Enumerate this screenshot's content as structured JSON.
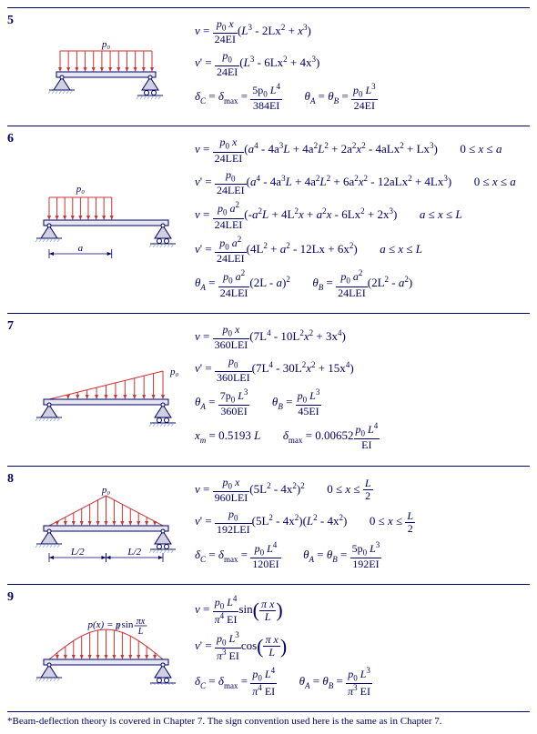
{
  "colors": {
    "ink": "#000066",
    "load": "#cc3333",
    "beam_fill": "#e6e6f0",
    "support_fill": "#d0d0e0",
    "ground": "#99aacc"
  },
  "footnote": "*Beam-deflection theory is covered in Chapter 7. The sign convention used here is the same as in Chapter 7.",
  "rows": [
    {
      "num": "5",
      "diagram_type": "uniform",
      "load_label": "p₀",
      "formulas": [
        "v = \\frac{p_0 x}{24EI}(L^3 - 2Lx^2 + x^3)",
        "v' = \\frac{p_0}{24EI}(L^3 - 6Lx^2 + 4x^3)",
        "\\delta_C = \\delta_{max} = \\frac{5p_0 L^4}{384EI} \\quad \\theta_A = \\theta_B = \\frac{p_0 L^3}{24EI}"
      ]
    },
    {
      "num": "6",
      "diagram_type": "partial_uniform",
      "load_label": "p₀",
      "dim_label": "a",
      "formulas": [
        "v = \\frac{p_0 x}{24LEI}(a^4 - 4a^3L + 4a^2L^2 + 2a^2x^2 - 4aLx^2 + Lx^3) \\quad 0 \\le x \\le a",
        "v' = \\frac{p_0}{24LEI}(a^4 - 4a^3L + 4a^2L^2 + 6a^2x^2 - 12aLx^2 + 4Lx^3) \\quad 0 \\le x \\le a",
        "v = \\frac{p_0 a^2}{24LEI}(-a^2L + 4L^2x + a^2x - 6Lx^2 + 2x^3) \\quad a \\le x \\le L",
        "v' = \\frac{p_0 a^2}{24LEI}(4L^2 + a^2 - 12Lx + 6x^2) \\quad a \\le x \\le L",
        "\\theta_A = \\frac{p_0 a^2}{24LEI}(2L - a)^2 \\quad \\theta_B = \\frac{p_0 a^2}{24LEI}(2L^2 - a^2)"
      ]
    },
    {
      "num": "7",
      "diagram_type": "triangular_rising",
      "load_label": "p₀",
      "formulas": [
        "v = \\frac{p_0 x}{360LEI}(7L^4 - 10L^2x^2 + 3x^4)",
        "v' = \\frac{p_0}{360LEI}(7L^4 - 30L^2x^2 + 15x^4)",
        "\\theta_A = \\frac{7p_0 L^3}{360EI} \\quad \\theta_B = \\frac{p_0 L^3}{45EI}",
        "x_m = 0.5193\\,L \\quad \\delta_{max} = 0.00652\\frac{p_0 L^4}{EI}"
      ]
    },
    {
      "num": "8",
      "diagram_type": "triangular_center",
      "load_label": "p₀",
      "dim_label": "L/2",
      "formulas": [
        "v = \\frac{p_0 x}{960LEI}(5L^2 - 4x^2)^2 \\quad 0 \\le x \\le \\frac{L}{2}",
        "v' = \\frac{p_0}{192LEI}(5L^2 - 4x^2)(L^2 - 4x^2) \\quad 0 \\le x \\le \\frac{L}{2}",
        "\\delta_C = \\delta_{max} = \\frac{p_0 L^4}{120EI} \\quad \\theta_A = \\theta_B = \\frac{5p_0 L^3}{192EI}"
      ]
    },
    {
      "num": "9",
      "diagram_type": "sine",
      "load_label": "p(x) = p₀ sin (πx/L)",
      "formulas": [
        "v = \\frac{p_0 L^4}{\\pi^4 EI}\\sin\\left(\\frac{\\pi x}{L}\\right)",
        "v' = \\frac{p_0 L^3}{\\pi^3 EI}\\cos\\left(\\frac{\\pi x}{L}\\right)",
        "\\delta_C = \\delta_{max} = \\frac{p_0 L^4}{\\pi^4 EI} \\quad \\theta_A = \\theta_B = \\frac{p_0 L^3}{\\pi^3 EI}"
      ]
    }
  ]
}
